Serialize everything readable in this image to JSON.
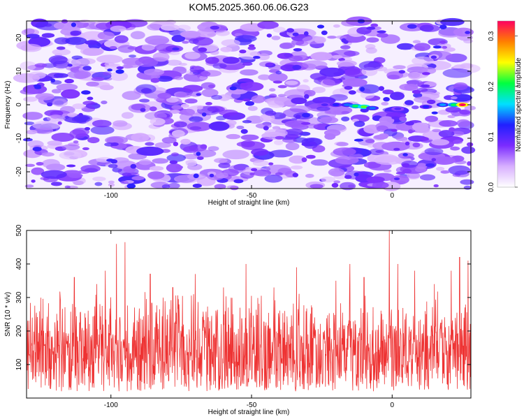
{
  "title": "KOM5.2025.360.06.06.G23",
  "chart_data": [
    {
      "type": "heatmap",
      "xlabel": "Height of straight line (km)",
      "ylabel": "Frequency (Hz)",
      "xlim": [
        -130,
        28
      ],
      "ylim": [
        -25,
        25
      ],
      "x_ticks": [
        "-100",
        "-50",
        "0"
      ],
      "x_tick_values": [
        -100,
        -50,
        0
      ],
      "y_ticks": [
        "-20",
        "-10",
        "0",
        "10",
        "20"
      ],
      "y_tick_values": [
        -20,
        -10,
        0,
        10,
        20
      ],
      "colorbar": {
        "label": "Normalized spectral amplitude",
        "range": [
          0.0,
          0.33
        ],
        "ticks": [
          "0.0",
          "0.1",
          "0.2",
          "0.3"
        ],
        "tick_values": [
          0.0,
          0.1,
          0.2,
          0.3
        ],
        "colors": [
          "#ffffff",
          "#d8b0ff",
          "#7b2cff",
          "#2020ff",
          "#00e0ff",
          "#00ff40",
          "#ffff00",
          "#ff8000",
          "#ff0060"
        ]
      },
      "background_level": 0.05,
      "signal_track": [
        {
          "x": -24,
          "y": 0.0,
          "value": 0.1
        },
        {
          "x": -20,
          "y": 0.0,
          "value": 0.12
        },
        {
          "x": -16,
          "y": 0.0,
          "value": 0.14
        },
        {
          "x": -13,
          "y": -0.4,
          "value": 0.2
        },
        {
          "x": -10,
          "y": -0.6,
          "value": 0.22
        },
        {
          "x": -7,
          "y": -1.0,
          "value": 0.14
        },
        {
          "x": 2,
          "y": -1.2,
          "value": 0.1
        },
        {
          "x": 12,
          "y": -0.6,
          "value": 0.12
        },
        {
          "x": 18,
          "y": 0.0,
          "value": 0.15
        },
        {
          "x": 22,
          "y": 0.0,
          "value": 0.2
        },
        {
          "x": 25,
          "y": 0.0,
          "value": 0.33
        }
      ]
    },
    {
      "type": "line",
      "xlabel": "Height of straight line (km)",
      "ylabel": "SNR (10 * v/v)",
      "xlim": [
        -130,
        28
      ],
      "ylim": [
        0,
        500
      ],
      "x_ticks": [
        "-100",
        "-50",
        "0"
      ],
      "x_tick_values": [
        -100,
        -50,
        0
      ],
      "y_ticks": [
        "100",
        "200",
        "300",
        "400",
        "500"
      ],
      "y_tick_values": [
        100,
        200,
        300,
        400,
        500
      ],
      "color": "#ee3333",
      "baseline": 130,
      "peaks": [
        {
          "x": -128,
          "y": 240
        },
        {
          "x": -118,
          "y": 300
        },
        {
          "x": -113,
          "y": 360
        },
        {
          "x": -105,
          "y": 340
        },
        {
          "x": -102,
          "y": 380
        },
        {
          "x": -98,
          "y": 460
        },
        {
          "x": -95,
          "y": 465
        },
        {
          "x": -86,
          "y": 370
        },
        {
          "x": -78,
          "y": 330
        },
        {
          "x": -70,
          "y": 370
        },
        {
          "x": -60,
          "y": 330
        },
        {
          "x": -52,
          "y": 400
        },
        {
          "x": -42,
          "y": 330
        },
        {
          "x": -34,
          "y": 390
        },
        {
          "x": -20,
          "y": 350
        },
        {
          "x": -15,
          "y": 400
        },
        {
          "x": -10,
          "y": 360
        },
        {
          "x": -1,
          "y": 510
        },
        {
          "x": 2,
          "y": 400
        },
        {
          "x": 8,
          "y": 380
        },
        {
          "x": 15,
          "y": 340
        },
        {
          "x": 21,
          "y": 380
        },
        {
          "x": 24,
          "y": 420
        },
        {
          "x": 27,
          "y": 410
        }
      ]
    }
  ]
}
